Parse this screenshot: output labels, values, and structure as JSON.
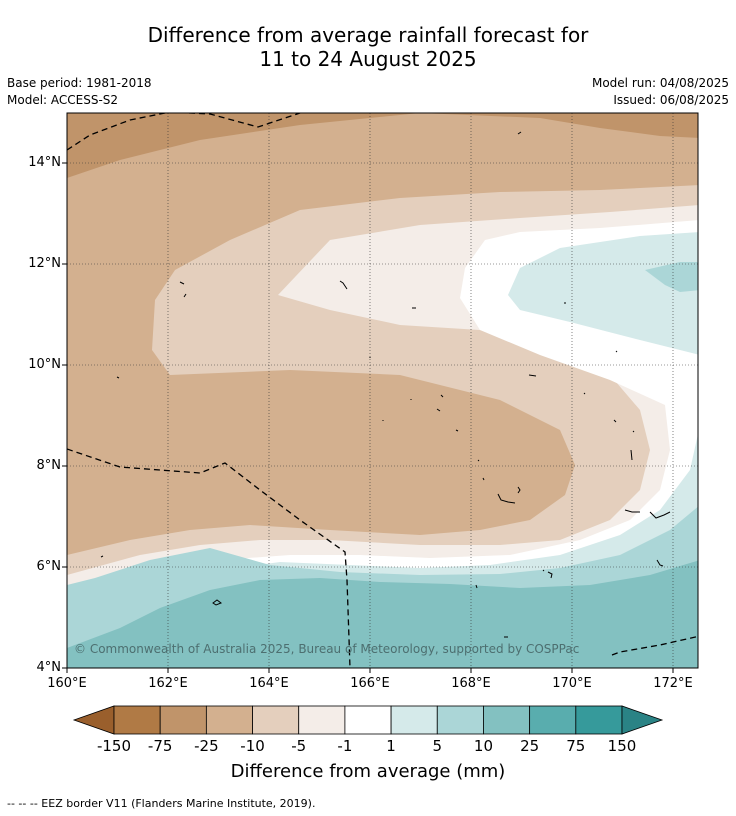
{
  "title_line1": "Difference from average rainfall forecast for",
  "title_line2": "11 to 24 August 2025",
  "base_period": "Base period: 1981-2018",
  "model": "Model: ACCESS-S2",
  "model_run": "Model run: 04/08/2025",
  "issued": "Issued: 06/08/2025",
  "lat_labels": [
    "14°N",
    "12°N",
    "10°N",
    "8°N",
    "6°N",
    "4°N"
  ],
  "lon_labels": [
    "160°E",
    "162°E",
    "164°E",
    "166°E",
    "168°E",
    "170°E",
    "172°E"
  ],
  "copyright": "© Commonwealth of Australia 2025, Bureau of Meteorology, supported by COSPPac",
  "colorbar": {
    "title": "Difference from average (mm)",
    "ticks": [
      "-150",
      "-75",
      "-25",
      "-10",
      "-5",
      "-1",
      "1",
      "5",
      "10",
      "25",
      "75",
      "150"
    ],
    "colors": [
      "#9a5f2c",
      "#b07a45",
      "#c0946a",
      "#d3b08f",
      "#e4cfbd",
      "#f4ede8",
      "#ffffff",
      "#d5eaea",
      "#abd6d7",
      "#83c1c1",
      "#59adae",
      "#369a9b",
      "#2a8385"
    ]
  },
  "footer": "--  --  -- EEZ border V11 (Flanders Marine Institute, 2019)."
}
